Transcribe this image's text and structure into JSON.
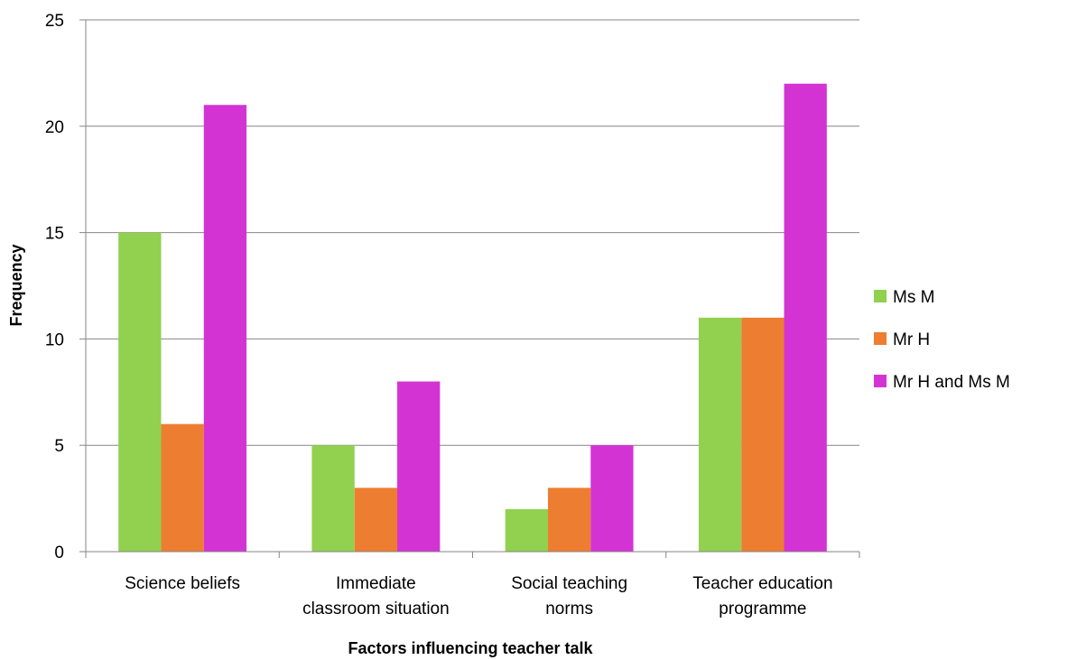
{
  "chart_data": {
    "type": "bar",
    "title": "",
    "xlabel": "Factors influencing teacher talk",
    "ylabel": "Frequency",
    "categories": [
      [
        "Science beliefs"
      ],
      [
        "Immediate",
        "classroom situation"
      ],
      [
        "Social teaching",
        "norms"
      ],
      [
        "Teacher education",
        "programme"
      ]
    ],
    "series": [
      {
        "name": "Ms M",
        "color": "#92d050",
        "values": [
          15,
          5,
          2,
          11
        ]
      },
      {
        "name": "Mr H",
        "color": "#ed7d31",
        "values": [
          6,
          3,
          3,
          11
        ]
      },
      {
        "name": "Mr H and Ms M",
        "color": "#d433d4",
        "values": [
          21,
          8,
          5,
          22
        ]
      }
    ],
    "ylim": [
      0,
      25
    ],
    "yticks": [
      0,
      5,
      10,
      15,
      20,
      25
    ],
    "grid": true,
    "legend_position": "right"
  }
}
